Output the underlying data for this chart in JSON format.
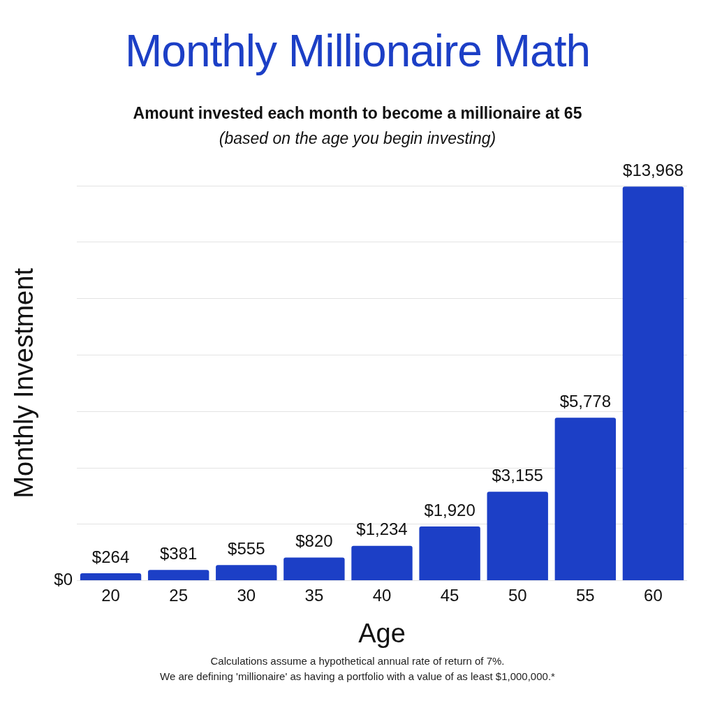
{
  "chart_data": {
    "type": "bar",
    "title": "Monthly Millionaire Math",
    "subtitle": "Amount invested each month to become a millionaire at 65\n(based on the age you begin investing)",
    "xlabel": "Age",
    "ylabel": "Monthly Investment",
    "categories": [
      "20",
      "25",
      "30",
      "35",
      "40",
      "45",
      "50",
      "55",
      "60"
    ],
    "values": [
      264,
      381,
      555,
      820,
      1234,
      1920,
      3155,
      5778,
      13968
    ],
    "value_labels": [
      "$264",
      "$381",
      "$555",
      "$820",
      "$1,234",
      "$1,920",
      "$3,155",
      "$5,778",
      "$13,968"
    ],
    "color": "#1c3fc6",
    "grid": "y",
    "legend": false,
    "annotations": [
      "$0",
      "Calculations assume a hypothetical annual rate of return of 7%.",
      "We are defining 'millionaire' as having a portfolio with a value of as least $1,000,000.*"
    ]
  }
}
